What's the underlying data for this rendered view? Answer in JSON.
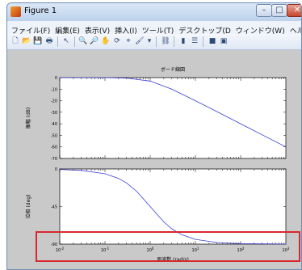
{
  "window": {
    "title": "Figure 1",
    "minimize_glyph": "–",
    "maximize_glyph": "□",
    "close_glyph": "✕"
  },
  "menu": [
    "ファイル(F)",
    "編集(E)",
    "表示(V)",
    "挿入(I)",
    "ツール(T)",
    "デスクトップ(D",
    "ウィンドウ(W)",
    "ヘルプ(H)"
  ],
  "menu_overflow_glyph": "▸",
  "toolbar": [
    {
      "icon": "new-figure-icon",
      "glyph": "🗋"
    },
    {
      "icon": "open-file-icon",
      "glyph": "📂"
    },
    {
      "icon": "save-icon",
      "glyph": "💾"
    },
    {
      "icon": "print-icon",
      "glyph": "🖶"
    },
    {
      "icon": "edit-plot-arrow-icon",
      "glyph": "↖"
    },
    {
      "icon": "zoom-in-icon",
      "glyph": "🔍"
    },
    {
      "icon": "zoom-out-icon",
      "glyph": "🔎"
    },
    {
      "icon": "pan-hand-icon",
      "glyph": "✋"
    },
    {
      "icon": "rotate-3d-icon",
      "glyph": "⟳"
    },
    {
      "icon": "data-cursor-icon",
      "glyph": "⌖"
    },
    {
      "icon": "brush-icon",
      "glyph": "🖌"
    },
    {
      "icon": "brush-dropdown-icon",
      "glyph": "▾"
    },
    {
      "icon": "link-plot-icon",
      "glyph": "⛓"
    },
    {
      "icon": "colorbar-icon",
      "glyph": "▮"
    },
    {
      "icon": "legend-icon",
      "glyph": "☰"
    },
    {
      "icon": "hide-plot-tools-icon",
      "glyph": "■"
    },
    {
      "icon": "show-plot-tools-icon",
      "glyph": "▣"
    }
  ],
  "colors": {
    "line": "#3b3bd9",
    "highlight": "#d9282c",
    "figure_bg": "#c9c9c9"
  },
  "chart_data": [
    {
      "type": "line",
      "title": "ボード線図",
      "xlabel": "",
      "ylabel": "振幅 (dB)",
      "xscale": "log",
      "xlim": [
        0.01,
        1000
      ],
      "ylim": [
        -70,
        0
      ],
      "yticks": [
        0,
        -10,
        -20,
        -30,
        -40,
        -50,
        -60,
        -70
      ],
      "x": [
        0.01,
        0.1,
        0.3,
        1,
        3,
        10,
        30,
        100,
        1000
      ],
      "y": [
        0,
        0,
        -0.4,
        -3,
        -10,
        -20,
        -29.5,
        -40,
        -60
      ]
    },
    {
      "type": "line",
      "title": "",
      "xlabel": "周波数 (rad/s)",
      "ylabel": "位相 (deg)",
      "xscale": "log",
      "xlim": [
        0.01,
        1000
      ],
      "ylim": [
        -90,
        0
      ],
      "yticks": [
        0,
        -45,
        -90
      ],
      "xticks": [
        "10^-2",
        "10^-1",
        "10^0",
        "10^1",
        "10^2",
        "10^3"
      ],
      "x": [
        0.01,
        0.03,
        0.1,
        0.2,
        0.3,
        0.5,
        1,
        2,
        3,
        5,
        10,
        30,
        100,
        1000
      ],
      "y": [
        -0.6,
        -1.7,
        -5.7,
        -11.3,
        -16.7,
        -26.6,
        -45,
        -63.4,
        -71.6,
        -78.7,
        -84.3,
        -88.1,
        -89.4,
        -89.9
      ]
    }
  ]
}
